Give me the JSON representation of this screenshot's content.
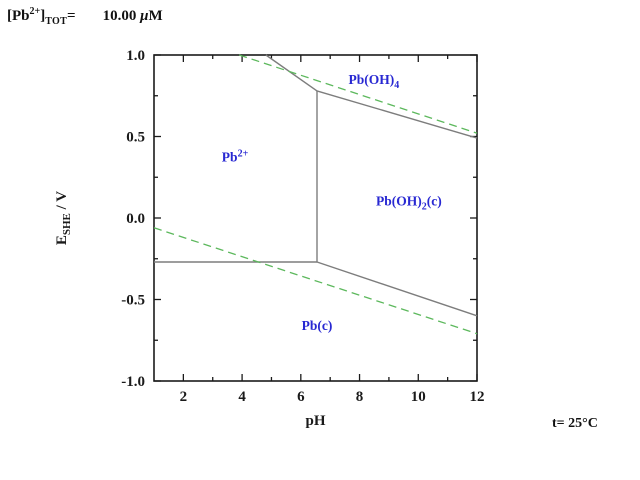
{
  "header": {
    "formula_segments": [
      {
        "t": "[Pb"
      },
      {
        "t": "2+",
        "s": "sup"
      },
      {
        "t": "]"
      },
      {
        "t": "TOT",
        "s": "sub"
      },
      {
        "t": "="
      }
    ],
    "value_segments": [
      {
        "t": "10.00 ",
        "s": "value-start"
      },
      {
        "t": "μ",
        "s": "i"
      },
      {
        "t": "M"
      }
    ]
  },
  "footer": {
    "temperature": "t= 25°C"
  },
  "chart_data": {
    "type": "line",
    "subtype": "pourbaix-eh-ph-diagram",
    "title": "[Pb2+]TOT= 10.00 μM",
    "xlabel": "pH",
    "ylabel": "E SHE / V",
    "ylabel_segments": [
      {
        "t": "E"
      },
      {
        "t": "SHE",
        "s": "sub"
      },
      {
        "t": " / V"
      }
    ],
    "xlim": [
      1,
      12
    ],
    "ylim": [
      -1.0,
      1.0
    ],
    "x_major_ticks": [
      2,
      4,
      6,
      8,
      10,
      12
    ],
    "x_minor_ticks": [
      3,
      5,
      7,
      9,
      11
    ],
    "y_major_ticks": [
      1.0,
      0.5,
      0.0,
      -0.5,
      -1.0
    ],
    "y_major_tick_labels": [
      "1.0",
      "0.5",
      "0.0",
      "-0.5",
      "-1.0"
    ],
    "y_minor_ticks": [
      0.75,
      0.25,
      -0.25,
      -0.75
    ],
    "grid": false,
    "legend": "none",
    "annotation": "t= 25°C",
    "series": [
      {
        "name": "boundary-pb2plus-pboh4",
        "role": "boundary",
        "dashed": false,
        "points": [
          [
            4.81,
            1.0
          ],
          [
            6.55,
            0.78
          ]
        ]
      },
      {
        "name": "boundary-pboh4-pboh2c",
        "role": "boundary",
        "dashed": false,
        "points": [
          [
            6.55,
            0.78
          ],
          [
            12.0,
            0.49
          ]
        ]
      },
      {
        "name": "boundary-pb2plus-pboh2c",
        "role": "boundary",
        "dashed": false,
        "points": [
          [
            6.55,
            0.78
          ],
          [
            6.55,
            -0.27
          ]
        ]
      },
      {
        "name": "boundary-pb2plus-pbc",
        "role": "boundary",
        "dashed": false,
        "points": [
          [
            1.0,
            -0.27
          ],
          [
            6.55,
            -0.27
          ]
        ]
      },
      {
        "name": "boundary-pboh2c-pbc",
        "role": "boundary",
        "dashed": false,
        "points": [
          [
            6.55,
            -0.27
          ],
          [
            12.0,
            -0.6
          ]
        ]
      },
      {
        "name": "water-line-o2-h2o",
        "role": "water",
        "dashed": true,
        "points": [
          [
            3.9,
            1.0
          ],
          [
            12.0,
            0.52
          ]
        ]
      },
      {
        "name": "water-line-h2o-h2",
        "role": "water",
        "dashed": true,
        "points": [
          [
            1.0,
            -0.06
          ],
          [
            12.0,
            -0.71
          ]
        ]
      }
    ],
    "region_labels": [
      {
        "id": "pb2plus",
        "x": 3.76,
        "y": 0.378,
        "text": "Pb2+",
        "segments": [
          {
            "t": "Pb"
          },
          {
            "t": "2+",
            "s": "sup"
          }
        ]
      },
      {
        "id": "pboh4",
        "x": 8.49,
        "y": 0.852,
        "text": "Pb(OH)4",
        "segments": [
          {
            "t": "Pb(OH)"
          },
          {
            "t": "4",
            "s": "sub"
          }
        ]
      },
      {
        "id": "pboh2c",
        "x": 9.68,
        "y": 0.108,
        "text": "Pb(OH)2(c)",
        "segments": [
          {
            "t": "Pb(OH)"
          },
          {
            "t": "2",
            "s": "sub"
          },
          {
            "t": "(c)"
          }
        ]
      },
      {
        "id": "pbc",
        "x": 6.55,
        "y": -0.655,
        "text": "Pb(c)",
        "segments": [
          {
            "t": "Pb(c)"
          }
        ]
      }
    ],
    "colors": {
      "boundary": "#7d7d7d",
      "water": "#5cb85c",
      "region_label": "#2828d2",
      "axis": "#1a1a1a"
    }
  }
}
